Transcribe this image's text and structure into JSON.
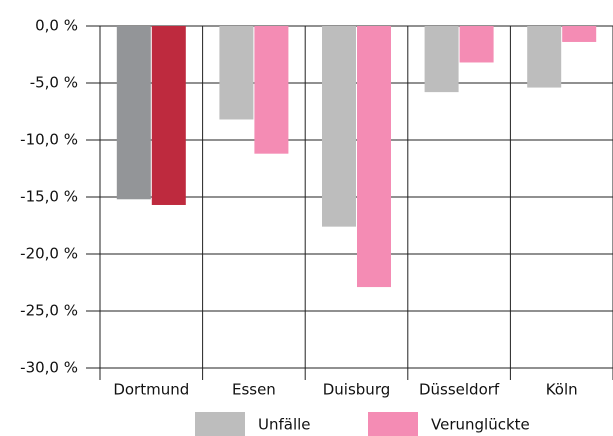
{
  "chart_data": {
    "type": "bar",
    "categories": [
      "Dortmund",
      "Essen",
      "Duisburg",
      "Düsseldorf",
      "Köln"
    ],
    "series": [
      {
        "name": "Unfälle",
        "color": "#bdbdbd",
        "colors": [
          "#939598",
          "#bdbdbd",
          "#bdbdbd",
          "#bdbdbd",
          "#bdbdbd"
        ],
        "values": [
          -15.2,
          -8.2,
          -17.6,
          -5.8,
          -5.4
        ]
      },
      {
        "name": "Verunglückte",
        "color": "#f48cb4",
        "colors": [
          "#be2a3e",
          "#f48cb4",
          "#f48cb4",
          "#f48cb4",
          "#f48cb4"
        ],
        "values": [
          -15.7,
          -11.2,
          -22.9,
          -3.2,
          -1.4
        ]
      }
    ],
    "ylim": [
      -30,
      0
    ],
    "yticks": [
      {
        "value": 0,
        "label": "0,0 %"
      },
      {
        "value": -5,
        "label": "-5,0 %"
      },
      {
        "value": -10,
        "label": "-10,0 %"
      },
      {
        "value": -15,
        "label": "-15,0 %"
      },
      {
        "value": -20,
        "label": "-20,0 %"
      },
      {
        "value": -25,
        "label": "-25,0 %"
      },
      {
        "value": -30,
        "label": "-30,0 %"
      }
    ],
    "grid": true,
    "legend": "bottom"
  }
}
